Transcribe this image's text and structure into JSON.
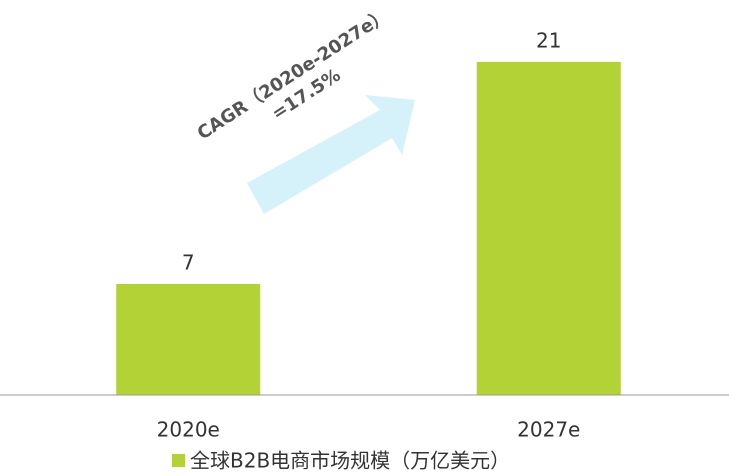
{
  "chart_data": {
    "type": "bar",
    "categories": [
      "2020e",
      "2027e"
    ],
    "series": [
      {
        "name": "全球B2B电商市场规模（万亿美元）",
        "color": "#b2d235",
        "values": [
          7,
          21
        ]
      }
    ],
    "ylim": [
      0,
      22
    ],
    "annotations": [
      "CAGR（2020e-2027e）",
      "=17.5%"
    ]
  }
}
